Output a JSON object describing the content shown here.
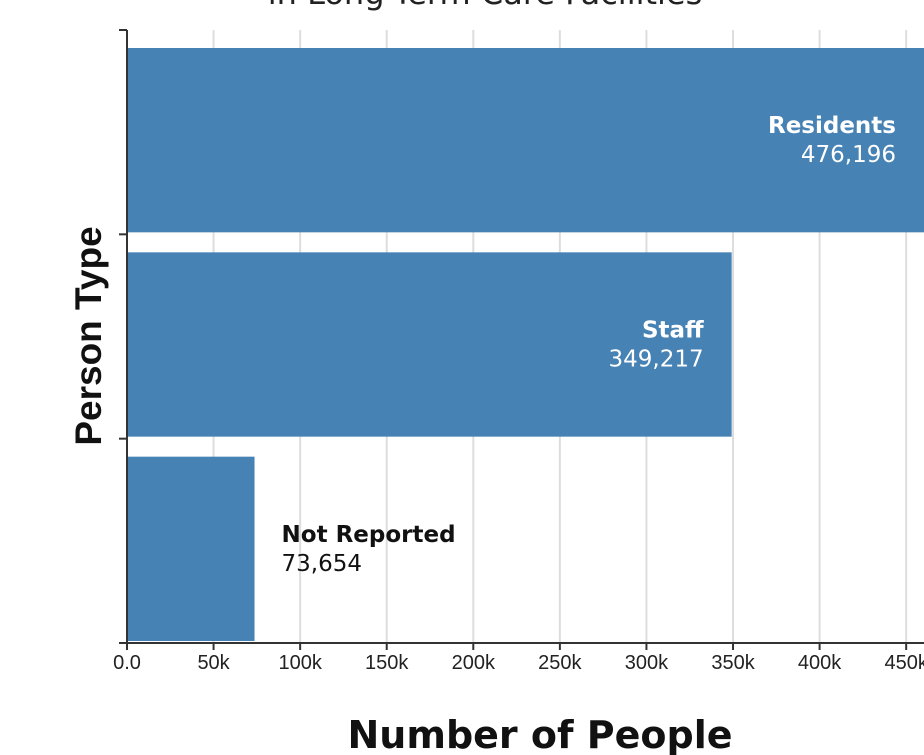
{
  "chart_data": {
    "type": "barh",
    "title": "in Long-Term Care Facilities",
    "xlabel": "Number of People",
    "ylabel": "Person Type",
    "categories": [
      "Residents",
      "Staff",
      "Not Reported"
    ],
    "values": [
      476196,
      349217,
      73654
    ],
    "value_labels": [
      "476,196",
      "349,217",
      "73,654"
    ],
    "color": "#4682b4",
    "xlim": [
      0,
      460300
    ],
    "xticks": [
      {
        "value": 0,
        "label": "0.0"
      },
      {
        "value": 50000,
        "label": "50k"
      },
      {
        "value": 100000,
        "label": "100k"
      },
      {
        "value": 150000,
        "label": "150k"
      },
      {
        "value": 200000,
        "label": "200k"
      },
      {
        "value": 250000,
        "label": "250k"
      },
      {
        "value": 300000,
        "label": "300k"
      },
      {
        "value": 350000,
        "label": "350k"
      },
      {
        "value": 400000,
        "label": "400k"
      },
      {
        "value": 450000,
        "label": "450k"
      }
    ],
    "grid": true
  }
}
